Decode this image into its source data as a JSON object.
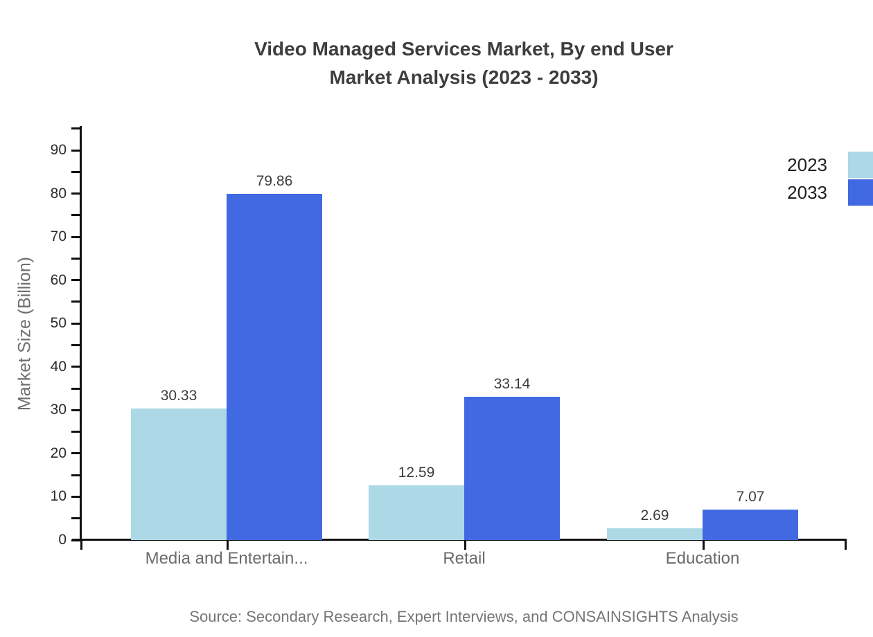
{
  "title": {
    "line1": "Video Managed Services Market, By end User",
    "line2": "Market Analysis (2023 - 2033)"
  },
  "source": "Source: Secondary Research, Expert Interviews, and CONSAINSIGHTS Analysis",
  "colors": {
    "series_2023": "#ADD8E6",
    "series_2033": "#4169E1",
    "axis": "#111111",
    "title_text": "#3d3d3d",
    "value_label_text": "#3c3c3c",
    "category_text": "#6b6b6b",
    "source_text": "#757575"
  },
  "chart_data": {
    "type": "bar",
    "title": "Video Managed Services Market, By end User Market Analysis (2023 - 2033)",
    "categories": [
      "Media and Entertain...",
      "Retail",
      "Education"
    ],
    "series": [
      {
        "name": "2023",
        "color": "#ADD8E6",
        "values": [
          30.33,
          12.59,
          2.69
        ]
      },
      {
        "name": "2033",
        "color": "#4169E1",
        "values": [
          79.86,
          33.14,
          7.07
        ]
      }
    ],
    "xlabel": "",
    "ylabel": "Market Size (Billion)",
    "ylim": [
      0,
      95
    ],
    "yticks_major": [
      0,
      10,
      20,
      30,
      40,
      50,
      60,
      70,
      80,
      90
    ],
    "ytick_minor_step": 5,
    "grid": false,
    "value_labels": true,
    "value_label_decimals": 2,
    "legend_position": "top-right"
  }
}
